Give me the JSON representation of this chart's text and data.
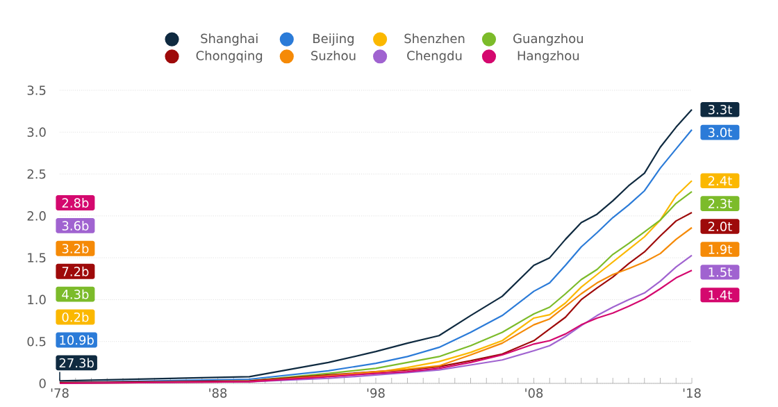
{
  "chart_data": {
    "type": "line",
    "x": [
      1978,
      1990,
      1995,
      1998,
      2000,
      2002,
      2004,
      2006,
      2008,
      2009,
      2010,
      2011,
      2012,
      2013,
      2014,
      2015,
      2016,
      2017,
      2018
    ],
    "series": [
      {
        "name": "Shanghai",
        "color": "#0f2a40",
        "values": [
          0.03,
          0.08,
          0.25,
          0.38,
          0.48,
          0.57,
          0.81,
          1.04,
          1.41,
          1.5,
          1.72,
          1.92,
          2.02,
          2.18,
          2.36,
          2.51,
          2.82,
          3.06,
          3.27
        ],
        "value_labels": [
          null,
          null,
          null,
          null,
          null,
          null,
          null,
          null,
          null,
          null,
          null,
          null,
          null,
          null,
          null,
          null,
          null,
          null,
          "3.3t"
        ]
      },
      {
        "name": "Beijing",
        "color": "#2b7bd8",
        "values": [
          0.01,
          0.05,
          0.15,
          0.24,
          0.32,
          0.43,
          0.61,
          0.81,
          1.1,
          1.2,
          1.41,
          1.63,
          1.8,
          1.98,
          2.13,
          2.3,
          2.57,
          2.8,
          3.03
        ],
        "value_labels": [
          null,
          null,
          null,
          null,
          null,
          null,
          null,
          null,
          null,
          null,
          null,
          null,
          null,
          null,
          null,
          null,
          null,
          null,
          "3.0t"
        ]
      },
      {
        "name": "Shenzhen",
        "color": "#fbb800",
        "values": [
          null,
          null,
          0.08,
          0.13,
          0.19,
          0.26,
          0.37,
          0.51,
          0.78,
          0.82,
          0.96,
          1.15,
          1.3,
          1.45,
          1.6,
          1.75,
          1.95,
          2.24,
          2.42
        ],
        "value_labels": [
          null,
          null,
          null,
          null,
          null,
          null,
          null,
          null,
          null,
          null,
          null,
          null,
          null,
          null,
          null,
          null,
          null,
          null,
          "2.4t"
        ]
      },
      {
        "name": "Guangzhou",
        "color": "#7cbb2a",
        "values": [
          0,
          0.03,
          0.12,
          0.18,
          0.25,
          0.32,
          0.45,
          0.61,
          0.83,
          0.91,
          1.07,
          1.24,
          1.36,
          1.54,
          1.67,
          1.81,
          1.95,
          2.15,
          2.29
        ],
        "value_labels": [
          null,
          null,
          null,
          null,
          null,
          null,
          null,
          null,
          null,
          null,
          null,
          null,
          null,
          null,
          null,
          null,
          null,
          null,
          "2.3t"
        ]
      },
      {
        "name": "Chongqing",
        "color": "#9e0a0a",
        "values": [
          0.01,
          0.03,
          0.1,
          0.14,
          0.16,
          0.2,
          0.27,
          0.35,
          0.51,
          0.65,
          0.79,
          1.0,
          1.14,
          1.27,
          1.43,
          1.57,
          1.76,
          1.94,
          2.04
        ],
        "value_labels": [
          null,
          null,
          null,
          null,
          null,
          null,
          null,
          null,
          null,
          null,
          null,
          null,
          null,
          null,
          null,
          null,
          null,
          null,
          "2.0t"
        ]
      },
      {
        "name": "Suzhou",
        "color": "#f58a07",
        "values": [
          0,
          0.02,
          0.09,
          0.14,
          0.17,
          0.21,
          0.34,
          0.48,
          0.7,
          0.77,
          0.92,
          1.07,
          1.2,
          1.3,
          1.37,
          1.45,
          1.55,
          1.72,
          1.86
        ],
        "value_labels": [
          null,
          null,
          null,
          null,
          null,
          null,
          null,
          null,
          null,
          null,
          null,
          null,
          null,
          null,
          null,
          null,
          null,
          null,
          "1.9t"
        ]
      },
      {
        "name": "Chengdu",
        "color": "#a063d0",
        "values": [
          0,
          0.02,
          0.06,
          0.1,
          0.13,
          0.16,
          0.22,
          0.28,
          0.39,
          0.45,
          0.56,
          0.69,
          0.81,
          0.91,
          1.0,
          1.08,
          1.22,
          1.39,
          1.53
        ],
        "value_labels": [
          null,
          null,
          null,
          null,
          null,
          null,
          null,
          null,
          null,
          null,
          null,
          null,
          null,
          null,
          null,
          null,
          null,
          null,
          "1.5t"
        ]
      },
      {
        "name": "Hangzhou",
        "color": "#d4086e",
        "values": [
          0,
          0.02,
          0.08,
          0.12,
          0.14,
          0.18,
          0.25,
          0.34,
          0.47,
          0.51,
          0.59,
          0.7,
          0.78,
          0.84,
          0.92,
          1.01,
          1.13,
          1.26,
          1.35
        ],
        "value_labels": [
          null,
          null,
          null,
          null,
          null,
          null,
          null,
          null,
          null,
          null,
          null,
          null,
          null,
          null,
          null,
          null,
          null,
          null,
          "1.4t"
        ]
      }
    ],
    "xlim": [
      1978,
      2018
    ],
    "xticks": [
      {
        "value": 1978,
        "label": "'78"
      },
      {
        "value": 1979,
        "label": null
      },
      {
        "value": 1980,
        "label": null
      },
      {
        "value": 1981,
        "label": null
      },
      {
        "value": 1982,
        "label": null
      },
      {
        "value": 1983,
        "label": null
      },
      {
        "value": 1984,
        "label": null
      },
      {
        "value": 1985,
        "label": null
      },
      {
        "value": 1986,
        "label": null
      },
      {
        "value": 1987,
        "label": null
      },
      {
        "value": 1988,
        "label": "'88"
      },
      {
        "value": 1989,
        "label": null
      },
      {
        "value": 1990,
        "label": null
      },
      {
        "value": 1991,
        "label": null
      },
      {
        "value": 1992,
        "label": null
      },
      {
        "value": 1993,
        "label": null
      },
      {
        "value": 1994,
        "label": null
      },
      {
        "value": 1995,
        "label": null
      },
      {
        "value": 1996,
        "label": null
      },
      {
        "value": 1997,
        "label": null
      },
      {
        "value": 1998,
        "label": "'98"
      },
      {
        "value": 1999,
        "label": null
      },
      {
        "value": 2000,
        "label": null
      },
      {
        "value": 2001,
        "label": null
      },
      {
        "value": 2002,
        "label": null
      },
      {
        "value": 2003,
        "label": null
      },
      {
        "value": 2004,
        "label": null
      },
      {
        "value": 2005,
        "label": null
      },
      {
        "value": 2006,
        "label": null
      },
      {
        "value": 2007,
        "label": null
      },
      {
        "value": 2008,
        "label": "'08"
      },
      {
        "value": 2009,
        "label": null
      },
      {
        "value": 2010,
        "label": null
      },
      {
        "value": 2011,
        "label": null
      },
      {
        "value": 2012,
        "label": null
      },
      {
        "value": 2013,
        "label": null
      },
      {
        "value": 2014,
        "label": null
      },
      {
        "value": 2015,
        "label": null
      },
      {
        "value": 2016,
        "label": null
      },
      {
        "value": 2017,
        "label": null
      },
      {
        "value": 2018,
        "label": "'18"
      }
    ],
    "ylim": [
      0,
      3.5
    ],
    "yticks": [
      0,
      0.5,
      {
        "value": 1,
        "label": "1.0"
      },
      1.5,
      {
        "value": 2,
        "label": "2.0"
      },
      2.5,
      {
        "value": 3,
        "label": "3.0"
      },
      3.5
    ],
    "annotations": [
      "27.3b",
      "10.9b",
      "0.2b",
      "4.3b",
      "7.2b",
      "3.2b",
      "3.6b",
      "2.8b"
    ],
    "grid": "y",
    "legend": "top",
    "line_style": "solid"
  }
}
